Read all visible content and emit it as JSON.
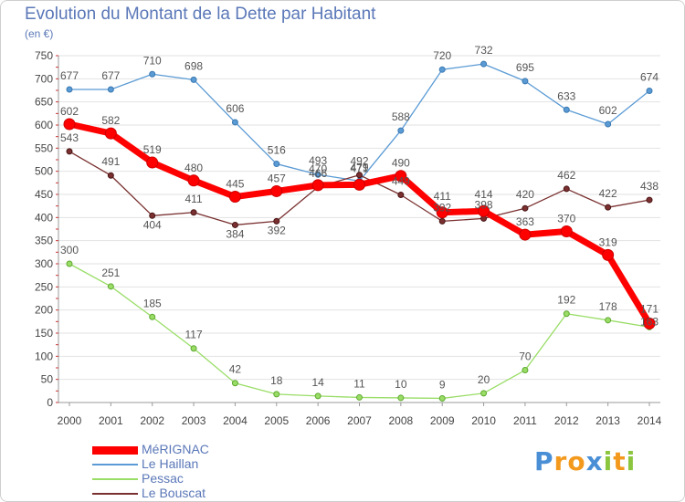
{
  "chart_data": {
    "type": "line",
    "title": "Evolution du Montant de la Dette par Habitant",
    "subtitle": "(en €)",
    "categories": [
      "2000",
      "2001",
      "2002",
      "2003",
      "2004",
      "2005",
      "2006",
      "2007",
      "2008",
      "2009",
      "2010",
      "2011",
      "2012",
      "2013",
      "2014"
    ],
    "ylim": [
      0,
      750
    ],
    "yticks": [
      0,
      50,
      100,
      150,
      200,
      250,
      300,
      350,
      400,
      450,
      500,
      550,
      600,
      650,
      700,
      750
    ],
    "grid": true,
    "legend_position": "bottom-left",
    "series": [
      {
        "name": "MéRIGNAC",
        "color": "#ff0000",
        "values": [
          602,
          582,
          519,
          480,
          445,
          457,
          470,
          471,
          490,
          411,
          414,
          363,
          370,
          319,
          171
        ]
      },
      {
        "name": "Le Haillan",
        "color": "#5b9bd5",
        "values": [
          677,
          677,
          710,
          698,
          606,
          516,
          493,
          479,
          588,
          720,
          732,
          695,
          633,
          602,
          674
        ]
      },
      {
        "name": "Pessac",
        "color": "#99dd66",
        "values": [
          300,
          251,
          185,
          117,
          42,
          18,
          14,
          11,
          10,
          9,
          20,
          70,
          192,
          178,
          163
        ]
      },
      {
        "name": "Le Bouscat",
        "color": "#7a3030",
        "values": [
          543,
          491,
          404,
          411,
          384,
          392,
          466,
          492,
          449,
          392,
          398,
          420,
          462,
          422,
          438
        ]
      }
    ]
  },
  "logo": {
    "letters": [
      "P",
      "r",
      "o",
      "x",
      "i",
      "t",
      "i"
    ],
    "colors": [
      "#4a8fd6",
      "#f39a1e",
      "#f39a1e",
      "#4a8fd6",
      "#8cc63f",
      "#f39a1e",
      "#8cc63f"
    ]
  }
}
